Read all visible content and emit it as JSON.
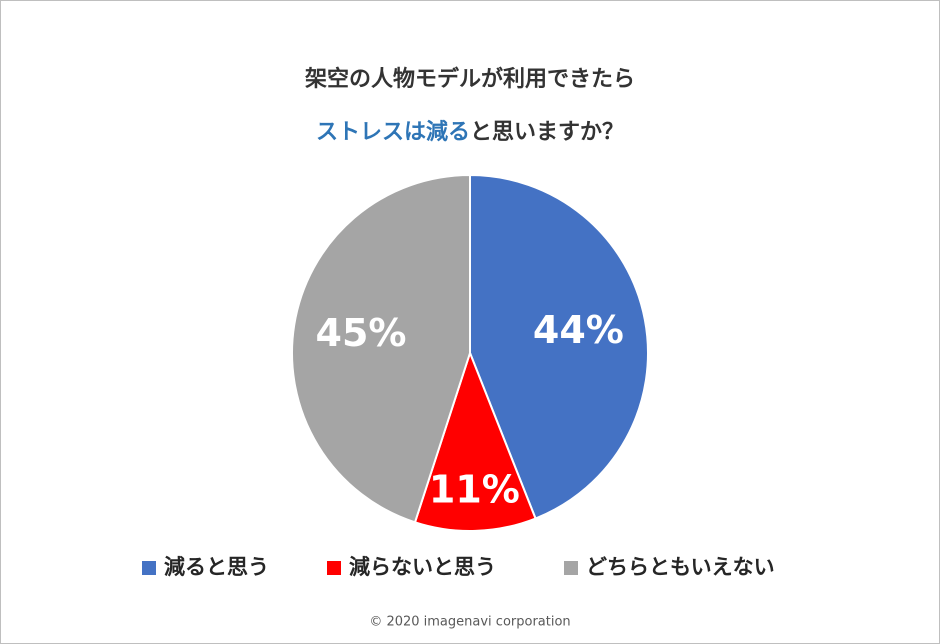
{
  "chart_data": {
    "type": "pie",
    "title": "架空の人物モデルが利用できたら",
    "subtitle_highlight": "ストレスは減る",
    "subtitle": "と思いますか？",
    "categories": [
      "減ると思う",
      "減らないと思う",
      "どちらともいえない"
    ],
    "values": [
      44,
      11,
      45
    ],
    "value_labels": [
      "44%",
      "11%",
      "45%"
    ],
    "colors": [
      "#4472c4",
      "#ff0000",
      "#a5a5a5"
    ],
    "legend": "bottom",
    "copyright": "© 2020 imagenavi corporation"
  }
}
